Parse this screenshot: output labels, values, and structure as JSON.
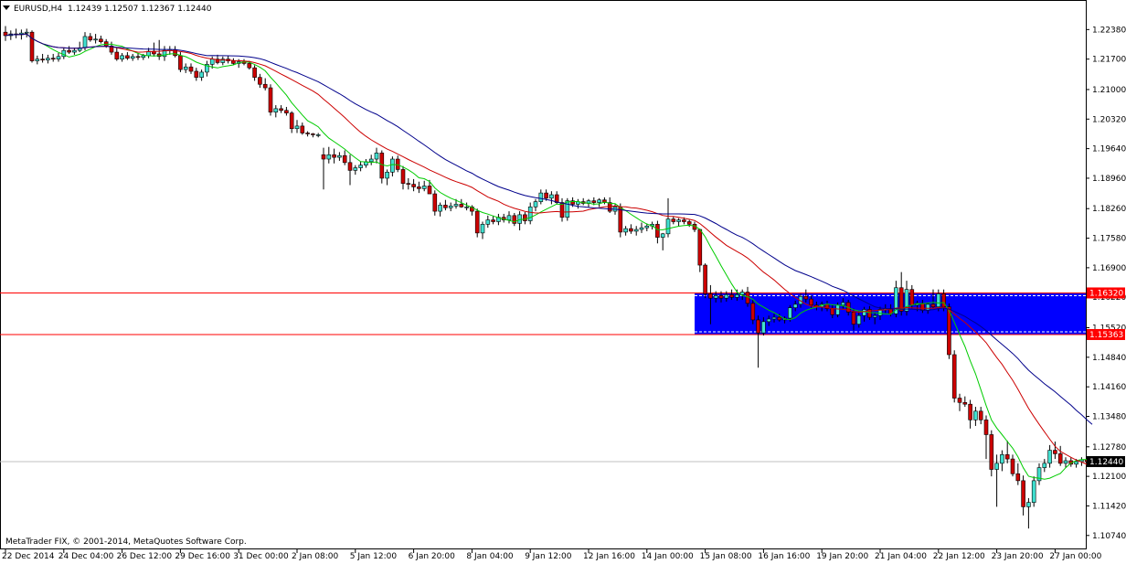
{
  "header": {
    "symbol": "EURUSD,H4",
    "ohlc": "1.12439 1.12507 1.12367 1.12440"
  },
  "copyright": "MetaTrader FIX, © 2001-2014, MetaQuotes Software Corp.",
  "colors": {
    "bull_candle": "#40e0d0",
    "bear_candle": "#cc0000",
    "ma_fast": "#00cc00",
    "ma_mid": "#cc0000",
    "ma_slow": "#00008b",
    "zone_fill": "#0000ff",
    "zone_border_lines": "#ff0000",
    "current_price_tag": "#000000"
  },
  "icons": {
    "menu": "triangle-down-icon"
  },
  "chart_data": {
    "type": "candlestick",
    "symbol": "EURUSD",
    "timeframe": "H4",
    "ylim": [
      1.1042,
      1.2306
    ],
    "y_ticks": [
      "1.22380",
      "1.21700",
      "1.21000",
      "1.20320",
      "1.19640",
      "1.18960",
      "1.18260",
      "1.17580",
      "1.16900",
      "1.16220",
      "1.15520",
      "1.14840",
      "1.14160",
      "1.13480",
      "1.12780",
      "1.12100",
      "1.11420",
      "1.10740"
    ],
    "x_ticks": [
      {
        "label": "22 Dec 2014",
        "i": 0
      },
      {
        "label": "24 Dec 04:00",
        "i": 11
      },
      {
        "label": "26 Dec 12:00",
        "i": 22
      },
      {
        "label": "29 Dec 16:00",
        "i": 33
      },
      {
        "label": "31 Dec 00:00",
        "i": 44
      },
      {
        "label": "2 Jan 08:00",
        "i": 55
      },
      {
        "label": "5 Jan 12:00",
        "i": 66
      },
      {
        "label": "6 Jan 20:00",
        "i": 77
      },
      {
        "label": "8 Jan 04:00",
        "i": 88
      },
      {
        "label": "9 Jan 12:00",
        "i": 99
      },
      {
        "label": "12 Jan 16:00",
        "i": 110
      },
      {
        "label": "14 Jan 00:00",
        "i": 121
      },
      {
        "label": "15 Jan 08:00",
        "i": 132
      },
      {
        "label": "16 Jan 16:00",
        "i": 143
      },
      {
        "label": "19 Jan 20:00",
        "i": 154
      },
      {
        "label": "21 Jan 04:00",
        "i": 165
      },
      {
        "label": "22 Jan 12:00",
        "i": 176
      },
      {
        "label": "23 Jan 20:00",
        "i": 187
      },
      {
        "label": "27 Jan 00:00",
        "i": 198
      }
    ],
    "horizontal_lines": [
      {
        "price": 1.1632,
        "label": "1.16320",
        "color": "#ff0000"
      },
      {
        "price": 1.15363,
        "label": "1.15363",
        "color": "#ff0000"
      }
    ],
    "current_price": {
      "price": 1.1244,
      "label": "1.12440"
    },
    "zone": {
      "from_i": 130,
      "price_top": 1.1632,
      "price_bottom": 1.15363
    },
    "candles": [
      [
        1.2232,
        1.2246,
        1.2212,
        1.2224
      ],
      [
        1.2224,
        1.2236,
        1.2214,
        1.2228
      ],
      [
        1.2228,
        1.224,
        1.2218,
        1.2226
      ],
      [
        1.2226,
        1.2238,
        1.2215,
        1.223
      ],
      [
        1.223,
        1.224,
        1.222,
        1.2232
      ],
      [
        1.2232,
        1.2236,
        1.2162,
        1.2166
      ],
      [
        1.2166,
        1.2178,
        1.2158,
        1.217
      ],
      [
        1.217,
        1.2182,
        1.2162,
        1.2168
      ],
      [
        1.2168,
        1.218,
        1.216,
        1.2172
      ],
      [
        1.2172,
        1.2182,
        1.2164,
        1.217
      ],
      [
        1.217,
        1.2184,
        1.2164,
        1.2176
      ],
      [
        1.2176,
        1.2196,
        1.217,
        1.219
      ],
      [
        1.219,
        1.22,
        1.2182,
        1.2186
      ],
      [
        1.2186,
        1.2196,
        1.218,
        1.219
      ],
      [
        1.219,
        1.221,
        1.2186,
        1.2196
      ],
      [
        1.2196,
        1.2232,
        1.219,
        1.2222
      ],
      [
        1.2222,
        1.223,
        1.221,
        1.2214
      ],
      [
        1.2214,
        1.2228,
        1.2206,
        1.2216
      ],
      [
        1.2216,
        1.2224,
        1.2206,
        1.221
      ],
      [
        1.221,
        1.2216,
        1.2196,
        1.22
      ],
      [
        1.22,
        1.221,
        1.218,
        1.2186
      ],
      [
        1.2186,
        1.2196,
        1.2166,
        1.217
      ],
      [
        1.217,
        1.2184,
        1.2164,
        1.2178
      ],
      [
        1.2178,
        1.2186,
        1.2168,
        1.2172
      ],
      [
        1.2172,
        1.2182,
        1.2166,
        1.2176
      ],
      [
        1.2176,
        1.2184,
        1.2168,
        1.2174
      ],
      [
        1.2174,
        1.2182,
        1.2168,
        1.2178
      ],
      [
        1.2178,
        1.2196,
        1.2172,
        1.2188
      ],
      [
        1.2188,
        1.2208,
        1.2176,
        1.2182
      ],
      [
        1.2182,
        1.2214,
        1.2168,
        1.2176
      ],
      [
        1.2176,
        1.22,
        1.2166,
        1.219
      ],
      [
        1.219,
        1.22,
        1.218,
        1.2192
      ],
      [
        1.2192,
        1.22,
        1.2174,
        1.2178
      ],
      [
        1.2178,
        1.2186,
        1.214,
        1.2146
      ],
      [
        1.2146,
        1.216,
        1.2138,
        1.2152
      ],
      [
        1.2152,
        1.216,
        1.2136,
        1.2142
      ],
      [
        1.2142,
        1.215,
        1.212,
        1.2128
      ],
      [
        1.2128,
        1.2146,
        1.212,
        1.214
      ],
      [
        1.214,
        1.2166,
        1.213,
        1.2158
      ],
      [
        1.2158,
        1.2176,
        1.2148,
        1.217
      ],
      [
        1.217,
        1.218,
        1.2158,
        1.2162
      ],
      [
        1.2162,
        1.2176,
        1.2156,
        1.217
      ],
      [
        1.217,
        1.2178,
        1.216,
        1.2166
      ],
      [
        1.2166,
        1.2172,
        1.2156,
        1.216
      ],
      [
        1.216,
        1.217,
        1.215,
        1.2164
      ],
      [
        1.2164,
        1.217,
        1.2156,
        1.216
      ],
      [
        1.216,
        1.2166,
        1.2146,
        1.215
      ],
      [
        1.215,
        1.2156,
        1.212,
        1.2128
      ],
      [
        1.2128,
        1.2136,
        1.2104,
        1.2112
      ],
      [
        1.2112,
        1.2126,
        1.2098,
        1.2104
      ],
      [
        1.2104,
        1.2112,
        1.204,
        1.2048
      ],
      [
        1.2048,
        1.2064,
        1.2036,
        1.2056
      ],
      [
        1.2056,
        1.2064,
        1.2046,
        1.2052
      ],
      [
        1.2052,
        1.206,
        1.204,
        1.2046
      ],
      [
        1.2046,
        1.205,
        1.2,
        1.201
      ],
      [
        1.201,
        1.203,
        1.2,
        1.2016
      ],
      [
        1.2016,
        1.2024,
        1.1996,
        1.2
      ],
      [
        1.2,
        1.2004,
        1.1992,
        1.1998
      ],
      [
        1.1998,
        1.2,
        1.199,
        1.1996
      ],
      [
        1.1996,
        1.2,
        1.199,
        1.1996
      ],
      [
        1.195,
        1.1966,
        1.187,
        1.194
      ],
      [
        1.194,
        1.1968,
        1.193,
        1.195
      ],
      [
        1.195,
        1.1964,
        1.193,
        1.1944
      ],
      [
        1.1944,
        1.1956,
        1.1936,
        1.1948
      ],
      [
        1.1948,
        1.196,
        1.1926,
        1.1932
      ],
      [
        1.1932,
        1.195,
        1.188,
        1.1914
      ],
      [
        1.1914,
        1.1926,
        1.1904,
        1.192
      ],
      [
        1.192,
        1.1934,
        1.1912,
        1.1926
      ],
      [
        1.1926,
        1.194,
        1.192,
        1.1934
      ],
      [
        1.1934,
        1.195,
        1.1926,
        1.194
      ],
      [
        1.194,
        1.1966,
        1.193,
        1.1954
      ],
      [
        1.1954,
        1.196,
        1.1884,
        1.1896
      ],
      [
        1.1896,
        1.1916,
        1.188,
        1.191
      ],
      [
        1.191,
        1.1946,
        1.19,
        1.194
      ],
      [
        1.194,
        1.1948,
        1.191,
        1.1916
      ],
      [
        1.1916,
        1.1924,
        1.187,
        1.1884
      ],
      [
        1.1884,
        1.1896,
        1.187,
        1.1882
      ],
      [
        1.1882,
        1.1894,
        1.1866,
        1.1876
      ],
      [
        1.1876,
        1.1888,
        1.1862,
        1.1872
      ],
      [
        1.1872,
        1.189,
        1.1866,
        1.1878
      ],
      [
        1.1878,
        1.1892,
        1.1864,
        1.186
      ],
      [
        1.186,
        1.1868,
        1.181,
        1.182
      ],
      [
        1.182,
        1.184,
        1.1808,
        1.1834
      ],
      [
        1.1834,
        1.1846,
        1.1822,
        1.1828
      ],
      [
        1.1828,
        1.184,
        1.182,
        1.1832
      ],
      [
        1.1832,
        1.1848,
        1.1826,
        1.1836
      ],
      [
        1.1836,
        1.1848,
        1.1828,
        1.183
      ],
      [
        1.183,
        1.184,
        1.1822,
        1.183
      ],
      [
        1.183,
        1.1834,
        1.181,
        1.182
      ],
      [
        1.182,
        1.1826,
        1.176,
        1.177
      ],
      [
        1.177,
        1.1796,
        1.1756,
        1.179
      ],
      [
        1.179,
        1.181,
        1.1782,
        1.18
      ],
      [
        1.18,
        1.181,
        1.179,
        1.1796
      ],
      [
        1.1796,
        1.1814,
        1.1788,
        1.1806
      ],
      [
        1.1806,
        1.1814,
        1.1794,
        1.18
      ],
      [
        1.18,
        1.182,
        1.1792,
        1.181
      ],
      [
        1.181,
        1.1816,
        1.1786,
        1.1792
      ],
      [
        1.1792,
        1.182,
        1.1776,
        1.1812
      ],
      [
        1.1812,
        1.1818,
        1.179,
        1.1798
      ],
      [
        1.1798,
        1.184,
        1.179,
        1.183
      ],
      [
        1.183,
        1.1848,
        1.182,
        1.1842
      ],
      [
        1.1842,
        1.187,
        1.1836,
        1.1862
      ],
      [
        1.1862,
        1.187,
        1.1844,
        1.185
      ],
      [
        1.185,
        1.1866,
        1.1836,
        1.1858
      ],
      [
        1.1858,
        1.1866,
        1.1836,
        1.184
      ],
      [
        1.184,
        1.185,
        1.1796,
        1.1806
      ],
      [
        1.1806,
        1.185,
        1.1798,
        1.1844
      ],
      [
        1.1844,
        1.1852,
        1.183,
        1.1836
      ],
      [
        1.1836,
        1.1848,
        1.1826,
        1.1842
      ],
      [
        1.1842,
        1.185,
        1.1834,
        1.1838
      ],
      [
        1.1838,
        1.1848,
        1.183,
        1.1844
      ],
      [
        1.1844,
        1.1852,
        1.1834,
        1.184
      ],
      [
        1.184,
        1.185,
        1.183,
        1.1846
      ],
      [
        1.1846,
        1.1852,
        1.1836,
        1.184
      ],
      [
        1.184,
        1.1852,
        1.1816,
        1.182
      ],
      [
        1.182,
        1.1836,
        1.1812,
        1.183
      ],
      [
        1.183,
        1.1838,
        1.176,
        1.1772
      ],
      [
        1.1772,
        1.1786,
        1.1764,
        1.178
      ],
      [
        1.178,
        1.179,
        1.1768,
        1.1774
      ],
      [
        1.1774,
        1.1786,
        1.1764,
        1.1778
      ],
      [
        1.1778,
        1.1794,
        1.177,
        1.1782
      ],
      [
        1.1782,
        1.1792,
        1.1774,
        1.1786
      ],
      [
        1.1786,
        1.1796,
        1.1778,
        1.179
      ],
      [
        1.179,
        1.1798,
        1.1746,
        1.176
      ],
      [
        1.176,
        1.177,
        1.173,
        1.1768
      ],
      [
        1.1768,
        1.185,
        1.176,
        1.1802
      ],
      [
        1.1802,
        1.1808,
        1.179,
        1.1796
      ],
      [
        1.1796,
        1.1804,
        1.1786,
        1.18
      ],
      [
        1.18,
        1.1806,
        1.179,
        1.1796
      ],
      [
        1.1796,
        1.18,
        1.1784,
        1.179
      ],
      [
        1.179,
        1.1796,
        1.1772,
        1.1778
      ],
      [
        1.1778,
        1.178,
        1.168,
        1.1696
      ],
      [
        1.1696,
        1.17,
        1.162,
        1.163
      ],
      [
        1.163,
        1.165,
        1.156,
        1.162
      ],
      [
        1.162,
        1.1636,
        1.161,
        1.1626
      ],
      [
        1.1626,
        1.1636,
        1.161,
        1.162
      ],
      [
        1.162,
        1.1636,
        1.1612,
        1.1628
      ],
      [
        1.1628,
        1.164,
        1.1616,
        1.1622
      ],
      [
        1.1622,
        1.164,
        1.1614,
        1.1628
      ],
      [
        1.1628,
        1.164,
        1.1616,
        1.1634
      ],
      [
        1.1634,
        1.1646,
        1.16,
        1.1608
      ],
      [
        1.1608,
        1.1616,
        1.156,
        1.157
      ],
      [
        1.157,
        1.158,
        1.146,
        1.154
      ],
      [
        1.154,
        1.1576,
        1.1534,
        1.1566
      ],
      [
        1.1566,
        1.158,
        1.1556,
        1.1572
      ],
      [
        1.1572,
        1.1584,
        1.1564,
        1.1576
      ],
      [
        1.1576,
        1.1584,
        1.1566,
        1.157
      ],
      [
        1.157,
        1.1578,
        1.1562,
        1.1574
      ],
      [
        1.1574,
        1.1604,
        1.1566,
        1.1598
      ],
      [
        1.1598,
        1.1614,
        1.159,
        1.1606
      ],
      [
        1.1606,
        1.163,
        1.1598,
        1.1624
      ],
      [
        1.1624,
        1.164,
        1.161,
        1.1618
      ],
      [
        1.1618,
        1.1626,
        1.1598,
        1.1604
      ],
      [
        1.1604,
        1.1612,
        1.1592,
        1.16
      ],
      [
        1.16,
        1.1612,
        1.159,
        1.1606
      ],
      [
        1.1606,
        1.1614,
        1.159,
        1.1596
      ],
      [
        1.1596,
        1.1604,
        1.1574,
        1.1582
      ],
      [
        1.1582,
        1.161,
        1.1576,
        1.1604
      ],
      [
        1.1604,
        1.162,
        1.1596,
        1.161
      ],
      [
        1.161,
        1.1616,
        1.158,
        1.1588
      ],
      [
        1.1588,
        1.1596,
        1.1546,
        1.156
      ],
      [
        1.156,
        1.159,
        1.1552,
        1.158
      ],
      [
        1.158,
        1.16,
        1.1566,
        1.1594
      ],
      [
        1.1594,
        1.1602,
        1.157,
        1.1576
      ],
      [
        1.1576,
        1.1586,
        1.156,
        1.158
      ],
      [
        1.158,
        1.16,
        1.157,
        1.1594
      ],
      [
        1.1594,
        1.1606,
        1.1586,
        1.1596
      ],
      [
        1.1596,
        1.1606,
        1.1578,
        1.1584
      ],
      [
        1.1584,
        1.166,
        1.1576,
        1.1644
      ],
      [
        1.1644,
        1.168,
        1.158,
        1.159
      ],
      [
        1.159,
        1.166,
        1.158,
        1.164
      ],
      [
        1.164,
        1.165,
        1.1596,
        1.1604
      ],
      [
        1.1604,
        1.1614,
        1.159,
        1.1608
      ],
      [
        1.1608,
        1.1616,
        1.1586,
        1.1592
      ],
      [
        1.1592,
        1.161,
        1.1584,
        1.1606
      ],
      [
        1.1606,
        1.164,
        1.1596,
        1.16
      ],
      [
        1.16,
        1.164,
        1.159,
        1.163
      ],
      [
        1.163,
        1.164,
        1.159,
        1.16
      ],
      [
        1.16,
        1.1608,
        1.148,
        1.149
      ],
      [
        1.149,
        1.15,
        1.138,
        1.139
      ],
      [
        1.139,
        1.14,
        1.136,
        1.138
      ],
      [
        1.138,
        1.1394,
        1.137,
        1.1376
      ],
      [
        1.1376,
        1.1386,
        1.132,
        1.134
      ],
      [
        1.134,
        1.137,
        1.1326,
        1.136
      ],
      [
        1.136,
        1.137,
        1.133,
        1.134
      ],
      [
        1.134,
        1.135,
        1.125,
        1.1306
      ],
      [
        1.1306,
        1.1316,
        1.121,
        1.1226
      ],
      [
        1.1226,
        1.126,
        1.114,
        1.124
      ],
      [
        1.124,
        1.127,
        1.1222,
        1.126
      ],
      [
        1.126,
        1.1292,
        1.124,
        1.125
      ],
      [
        1.125,
        1.126,
        1.121,
        1.1216
      ],
      [
        1.1216,
        1.124,
        1.119,
        1.12
      ],
      [
        1.12,
        1.1212,
        1.112,
        1.114
      ],
      [
        1.114,
        1.116,
        1.109,
        1.115
      ],
      [
        1.115,
        1.121,
        1.114,
        1.12
      ],
      [
        1.12,
        1.124,
        1.119,
        1.123
      ],
      [
        1.123,
        1.125,
        1.122,
        1.124
      ],
      [
        1.124,
        1.1282,
        1.123,
        1.127
      ],
      [
        1.127,
        1.129,
        1.125,
        1.1262
      ],
      [
        1.1262,
        1.128,
        1.1234,
        1.124
      ],
      [
        1.124,
        1.1254,
        1.123,
        1.1246
      ],
      [
        1.1246,
        1.1254,
        1.1232,
        1.1238
      ],
      [
        1.1238,
        1.125,
        1.123,
        1.1244
      ],
      [
        1.1244,
        1.1254,
        1.1234,
        1.1248
      ],
      [
        1.1248,
        1.1254,
        1.1236,
        1.1244
      ],
      [
        1.1244,
        1.1252,
        1.1236,
        1.1244
      ]
    ]
  }
}
